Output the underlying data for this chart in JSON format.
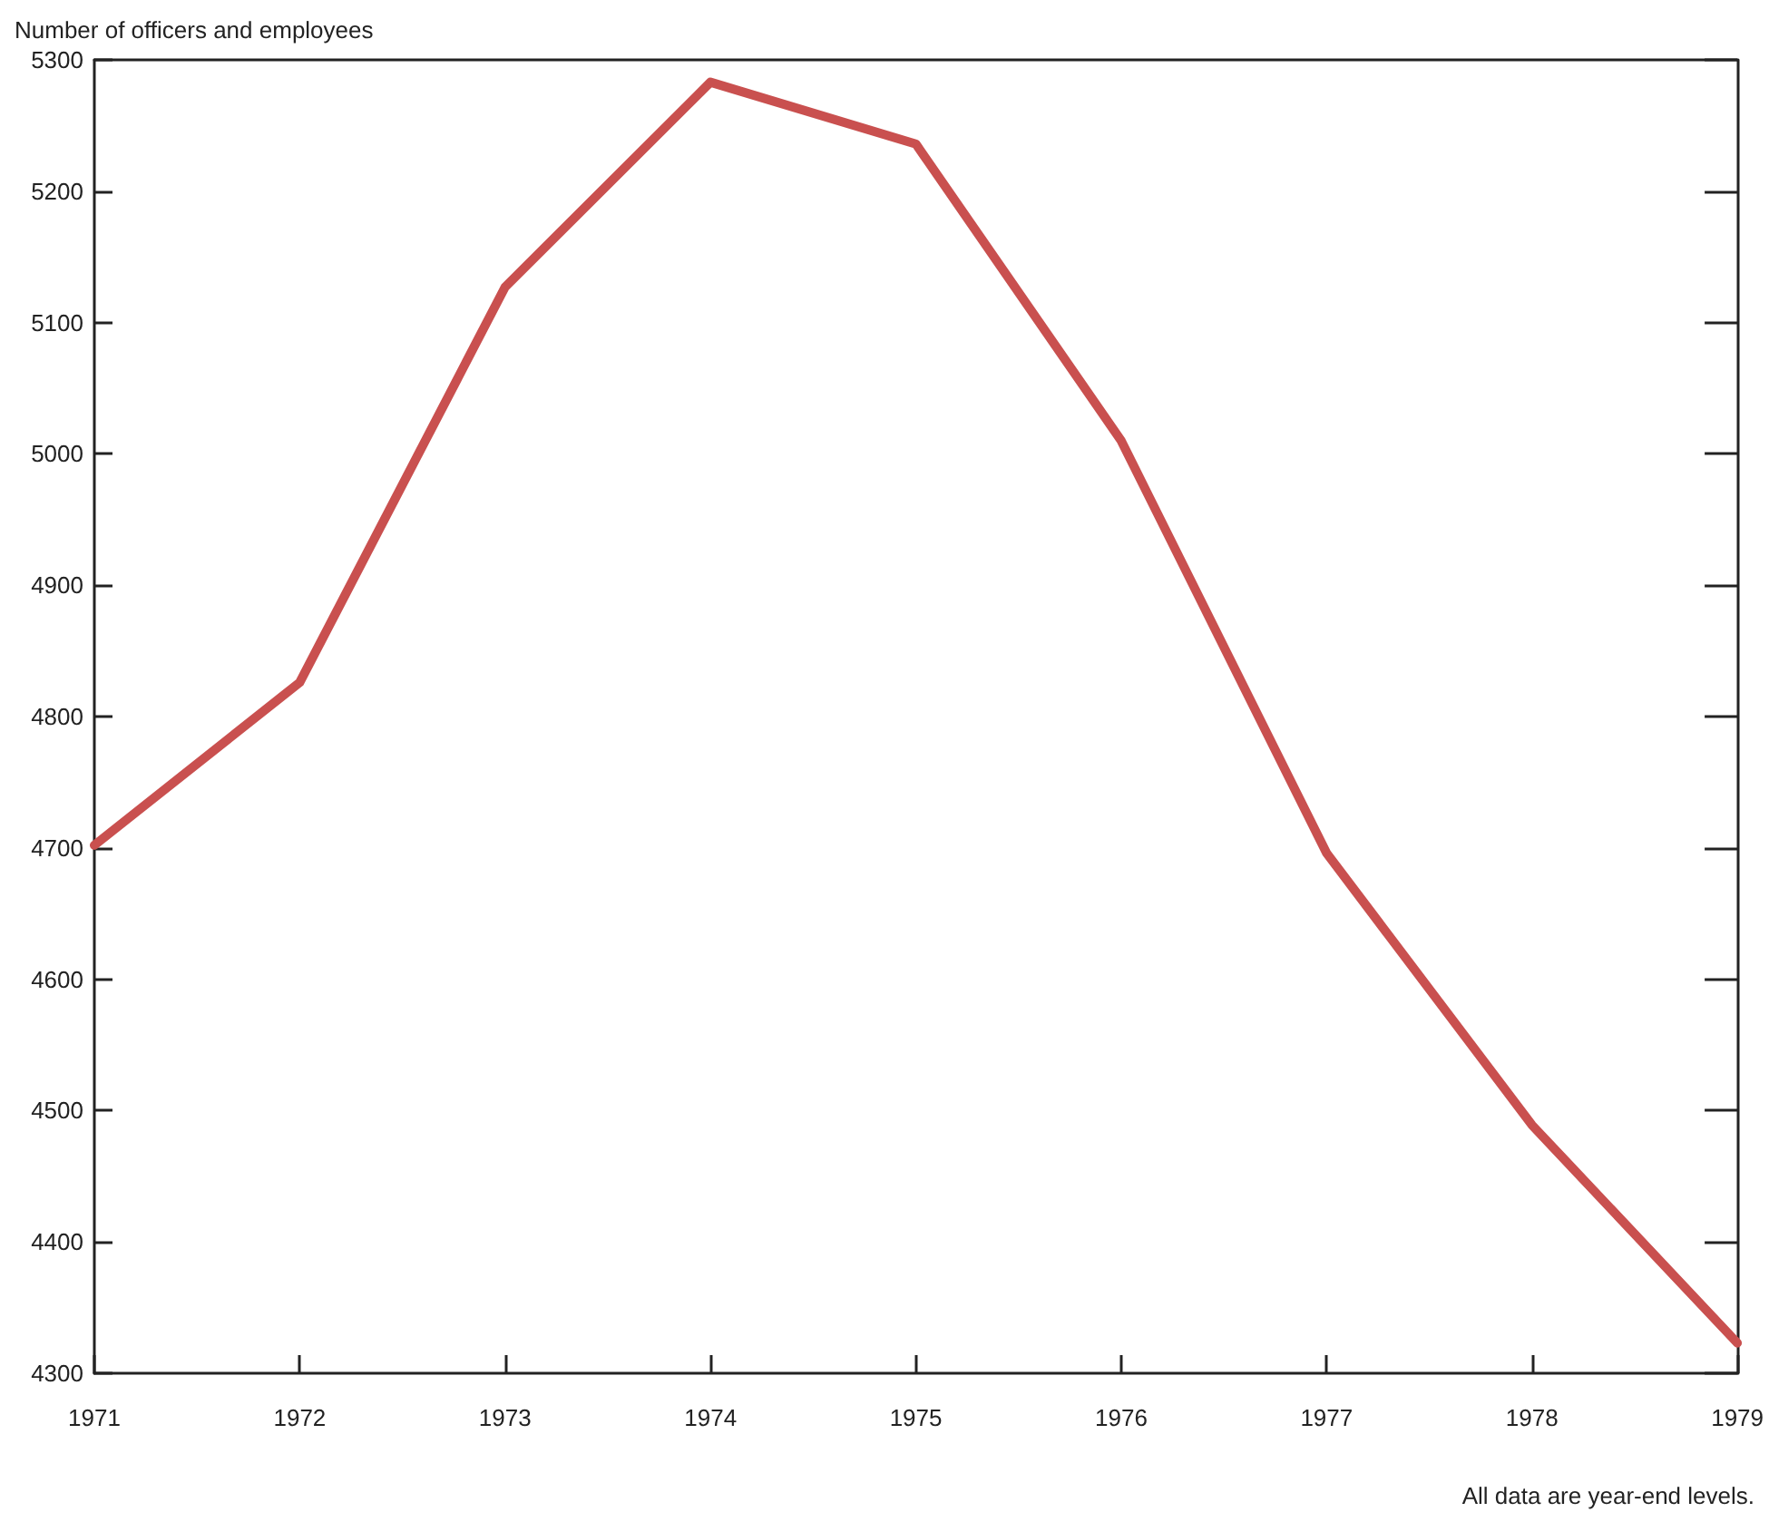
{
  "chart_data": {
    "type": "line",
    "ylabel": "Number of officers and employees",
    "x": [
      1971,
      1972,
      1973,
      1974,
      1975,
      1976,
      1977,
      1978,
      1979
    ],
    "series": [
      {
        "color": "#c9504f",
        "values": [
          4702,
          4826,
          5127,
          5283,
          5236,
          5010,
          4696,
          4489,
          4323
        ]
      }
    ],
    "xlim": [
      1971,
      1979
    ],
    "xticks": [
      1971,
      1972,
      1973,
      1974,
      1975,
      1976,
      1977,
      1978,
      1979
    ],
    "ylim": [
      4300,
      5300
    ],
    "yticks": [
      4300,
      4400,
      4500,
      4600,
      4700,
      4800,
      4900,
      5000,
      5100,
      5200,
      5300
    ],
    "grid": false,
    "marker": "none",
    "line_style": "solid",
    "annotations": [
      "All data are year-end levels."
    ]
  }
}
